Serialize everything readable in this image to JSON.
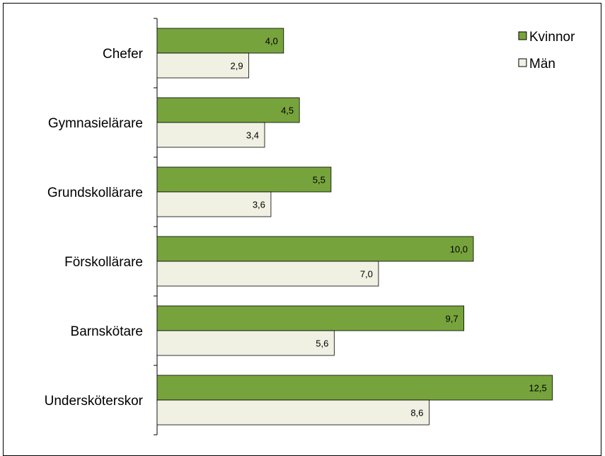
{
  "chart_data": {
    "type": "bar",
    "orientation": "horizontal",
    "categories": [
      "Chefer",
      "Gymnasielärare",
      "Grundskollärare",
      "Förskollärare",
      "Barnskötare",
      "Undersköterskor"
    ],
    "series": [
      {
        "name": "Kvinnor",
        "values": [
          4.0,
          4.5,
          5.5,
          10.0,
          9.7,
          12.5
        ],
        "labels": [
          "4,0",
          "4,5",
          "5,5",
          "10,0",
          "9,7",
          "12,5"
        ],
        "color": "#77a33c"
      },
      {
        "name": "Män",
        "values": [
          2.9,
          3.4,
          3.6,
          7.0,
          5.6,
          8.6
        ],
        "labels": [
          "2,9",
          "3,4",
          "3,6",
          "7,0",
          "5,6",
          "8,6"
        ],
        "color": "#f0f0e3"
      }
    ],
    "title": "",
    "xlabel": "",
    "ylabel": "",
    "xlim": [
      0,
      13
    ],
    "grid": false,
    "legend": "top-right"
  }
}
